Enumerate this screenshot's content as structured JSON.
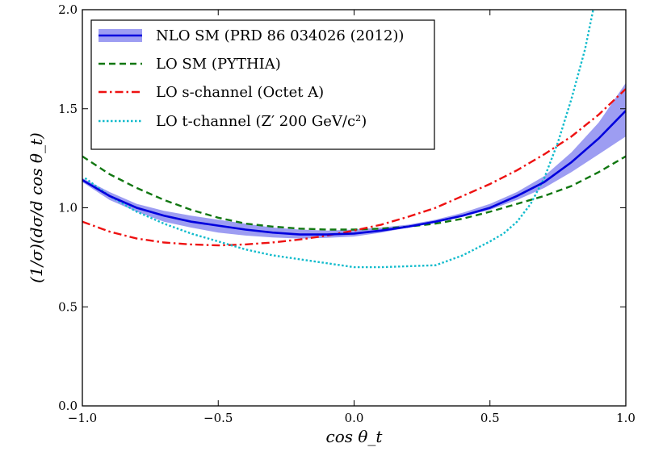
{
  "chart_data": {
    "type": "line",
    "xlabel": "cos θ_t",
    "ylabel": "(1/σ)(dσ/d cos θ_t)",
    "xlim": [
      -1.0,
      1.0
    ],
    "ylim": [
      0.0,
      2.0
    ],
    "xticks": [
      -1.0,
      -0.5,
      0.0,
      0.5,
      1.0
    ],
    "xtick_labels": [
      "−1.0",
      "−0.5",
      "0.0",
      "0.5",
      "1.0"
    ],
    "yticks": [
      0.0,
      0.5,
      1.0,
      1.5,
      2.0
    ],
    "ytick_labels": [
      "0.0",
      "0.5",
      "1.0",
      "1.5",
      "2.0"
    ],
    "grid": false,
    "legend_position": "top-left",
    "series": [
      {
        "name": "NLO SM (PRD 86 034026 (2012))",
        "style": "solid",
        "color": "#0000dd",
        "band_color": "#8c8cf0",
        "x": [
          -1.0,
          -0.9,
          -0.8,
          -0.7,
          -0.6,
          -0.5,
          -0.4,
          -0.3,
          -0.2,
          -0.1,
          0.0,
          0.1,
          0.2,
          0.3,
          0.4,
          0.5,
          0.6,
          0.7,
          0.8,
          0.9,
          1.0
        ],
        "y": [
          1.14,
          1.06,
          1.0,
          0.96,
          0.93,
          0.91,
          0.89,
          0.875,
          0.865,
          0.865,
          0.87,
          0.885,
          0.905,
          0.93,
          0.96,
          1.0,
          1.06,
          1.13,
          1.23,
          1.35,
          1.49
        ],
        "y_low": [
          1.13,
          1.04,
          0.98,
          0.93,
          0.9,
          0.875,
          0.86,
          0.85,
          0.845,
          0.848,
          0.855,
          0.875,
          0.9,
          0.925,
          0.955,
          0.99,
          1.04,
          1.1,
          1.18,
          1.27,
          1.36
        ],
        "y_high": [
          1.15,
          1.08,
          1.02,
          0.985,
          0.96,
          0.94,
          0.92,
          0.9,
          0.89,
          0.885,
          0.89,
          0.9,
          0.915,
          0.94,
          0.975,
          1.02,
          1.08,
          1.16,
          1.28,
          1.43,
          1.63
        ]
      },
      {
        "name": "LO SM (PYTHIA)",
        "style": "dashed",
        "color": "#117711",
        "x": [
          -1.0,
          -0.9,
          -0.8,
          -0.7,
          -0.6,
          -0.5,
          -0.4,
          -0.3,
          -0.2,
          -0.1,
          0.0,
          0.1,
          0.2,
          0.3,
          0.4,
          0.5,
          0.6,
          0.7,
          0.8,
          0.9,
          1.0
        ],
        "y": [
          1.26,
          1.17,
          1.1,
          1.04,
          0.99,
          0.95,
          0.92,
          0.905,
          0.895,
          0.89,
          0.89,
          0.895,
          0.905,
          0.92,
          0.945,
          0.98,
          1.02,
          1.06,
          1.11,
          1.18,
          1.26
        ]
      },
      {
        "name": "LO s-channel (Octet A)",
        "style": "dashdot",
        "color": "#ee1111",
        "x": [
          -1.0,
          -0.9,
          -0.8,
          -0.7,
          -0.6,
          -0.5,
          -0.4,
          -0.3,
          -0.2,
          -0.1,
          0.0,
          0.1,
          0.2,
          0.3,
          0.4,
          0.5,
          0.6,
          0.7,
          0.8,
          0.9,
          1.0
        ],
        "y": [
          0.93,
          0.88,
          0.845,
          0.825,
          0.815,
          0.81,
          0.815,
          0.825,
          0.84,
          0.86,
          0.885,
          0.915,
          0.955,
          1.0,
          1.06,
          1.12,
          1.19,
          1.27,
          1.36,
          1.47,
          1.6
        ]
      },
      {
        "name": "LO t-channel (Z′ 200 GeV/c²)",
        "style": "dotted",
        "color": "#11bbcc",
        "x": [
          -0.99,
          -0.9,
          -0.8,
          -0.7,
          -0.6,
          -0.5,
          -0.4,
          -0.3,
          -0.2,
          -0.1,
          0.0,
          0.1,
          0.2,
          0.3,
          0.4,
          0.5,
          0.55,
          0.6,
          0.65,
          0.7,
          0.75,
          0.8,
          0.85,
          0.88
        ],
        "y": [
          1.15,
          1.06,
          0.98,
          0.92,
          0.87,
          0.83,
          0.79,
          0.76,
          0.74,
          0.72,
          0.7,
          0.7,
          0.705,
          0.71,
          0.76,
          0.83,
          0.87,
          0.93,
          1.02,
          1.15,
          1.33,
          1.55,
          1.8,
          2.0
        ]
      }
    ]
  }
}
